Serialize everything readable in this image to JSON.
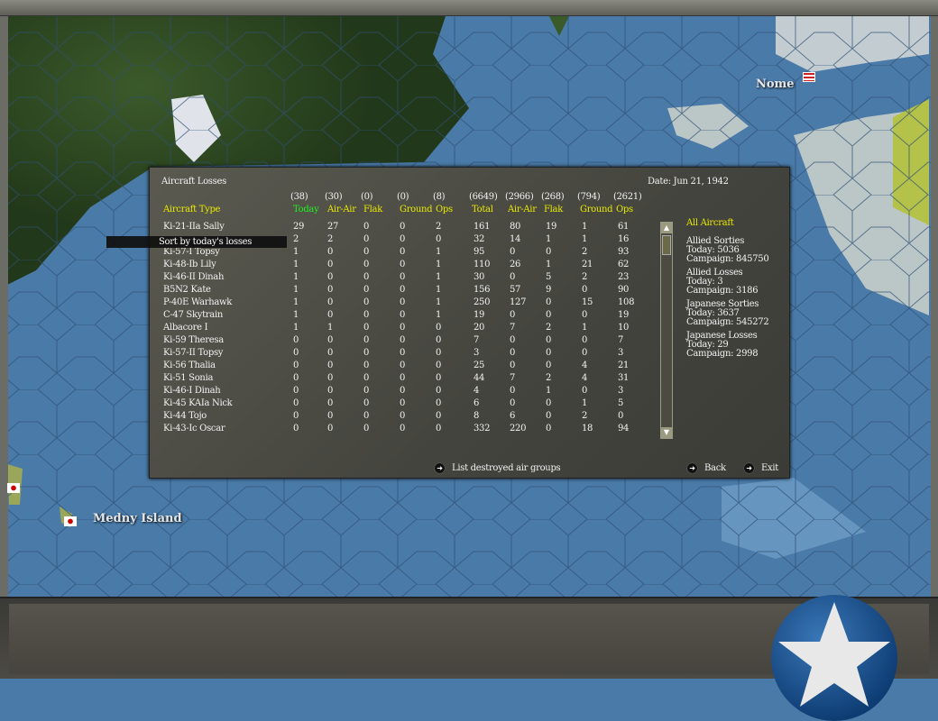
{
  "map": {
    "labels": [
      "Nome",
      "Medny Island"
    ],
    "colors": {
      "sea": "#4a7aa8",
      "land": "#2f4a22"
    }
  },
  "dialog": {
    "title": "Aircraft Losses",
    "date": "Date:  Jun 21, 1942",
    "tooltip": "Sort by today's losses",
    "header_name": "Aircraft Type",
    "columns": [
      {
        "total": "(38)",
        "label": "Today",
        "color": "green"
      },
      {
        "total": "(30)",
        "label": "Air-Air",
        "color": "yellow"
      },
      {
        "total": "(0)",
        "label": "Flak",
        "color": "yellow"
      },
      {
        "total": "(0)",
        "label": "Ground",
        "color": "yellow"
      },
      {
        "total": "(8)",
        "label": "Ops",
        "color": "yellow"
      },
      {
        "total": "(6649)",
        "label": "Total",
        "color": "yellow"
      },
      {
        "total": "(2966)",
        "label": "Air-Air",
        "color": "yellow"
      },
      {
        "total": "(268)",
        "label": "Flak",
        "color": "yellow"
      },
      {
        "total": "(794)",
        "label": "Ground",
        "color": "yellow"
      },
      {
        "total": "(2621)",
        "label": "Ops",
        "color": "yellow"
      }
    ],
    "rows": [
      {
        "name": "Ki-21-IIa Sally",
        "v": [
          "29",
          "27",
          "0",
          "0",
          "2",
          "161",
          "80",
          "19",
          "1",
          "61"
        ]
      },
      {
        "name": "",
        "v": [
          "2",
          "2",
          "0",
          "0",
          "0",
          "32",
          "14",
          "1",
          "1",
          "16"
        ]
      },
      {
        "name": "Ki-57-I Topsy",
        "v": [
          "1",
          "0",
          "0",
          "0",
          "1",
          "95",
          "0",
          "0",
          "2",
          "93"
        ]
      },
      {
        "name": "Ki-48-Ib Lily",
        "v": [
          "1",
          "0",
          "0",
          "0",
          "1",
          "110",
          "26",
          "1",
          "21",
          "62"
        ]
      },
      {
        "name": "Ki-46-II Dinah",
        "v": [
          "1",
          "0",
          "0",
          "0",
          "1",
          "30",
          "0",
          "5",
          "2",
          "23"
        ]
      },
      {
        "name": "B5N2 Kate",
        "v": [
          "1",
          "0",
          "0",
          "0",
          "1",
          "156",
          "57",
          "9",
          "0",
          "90"
        ]
      },
      {
        "name": "P-40E Warhawk",
        "v": [
          "1",
          "0",
          "0",
          "0",
          "1",
          "250",
          "127",
          "0",
          "15",
          "108"
        ]
      },
      {
        "name": "C-47 Skytrain",
        "v": [
          "1",
          "0",
          "0",
          "0",
          "1",
          "19",
          "0",
          "0",
          "0",
          "19"
        ]
      },
      {
        "name": "Albacore I",
        "v": [
          "1",
          "1",
          "0",
          "0",
          "0",
          "20",
          "7",
          "2",
          "1",
          "10"
        ]
      },
      {
        "name": "Ki-59 Theresa",
        "v": [
          "0",
          "0",
          "0",
          "0",
          "0",
          "7",
          "0",
          "0",
          "0",
          "7"
        ]
      },
      {
        "name": "Ki-57-II Topsy",
        "v": [
          "0",
          "0",
          "0",
          "0",
          "0",
          "3",
          "0",
          "0",
          "0",
          "3"
        ]
      },
      {
        "name": "Ki-56 Thalia",
        "v": [
          "0",
          "0",
          "0",
          "0",
          "0",
          "25",
          "0",
          "0",
          "4",
          "21"
        ]
      },
      {
        "name": "Ki-51 Sonia",
        "v": [
          "0",
          "0",
          "0",
          "0",
          "0",
          "44",
          "7",
          "2",
          "4",
          "31"
        ]
      },
      {
        "name": "Ki-46-I Dinah",
        "v": [
          "0",
          "0",
          "0",
          "0",
          "0",
          "4",
          "0",
          "1",
          "0",
          "3"
        ]
      },
      {
        "name": "Ki-45 KAIa Nick",
        "v": [
          "0",
          "0",
          "0",
          "0",
          "0",
          "6",
          "0",
          "0",
          "1",
          "5"
        ]
      },
      {
        "name": "Ki-44 Tojo",
        "v": [
          "0",
          "0",
          "0",
          "0",
          "0",
          "8",
          "6",
          "0",
          "2",
          "0"
        ]
      },
      {
        "name": "Ki-43-Ic Oscar",
        "v": [
          "0",
          "0",
          "0",
          "0",
          "0",
          "332",
          "220",
          "0",
          "18",
          "94"
        ]
      }
    ],
    "summary": {
      "filter": "All Aircraft",
      "blocks": [
        {
          "title": "Allied Sorties",
          "today": "Today:   5036",
          "campaign": "Campaign: 845750"
        },
        {
          "title": "Allied Losses",
          "today": "Today:   3",
          "campaign": "Campaign: 3186"
        },
        {
          "title": "Japanese Sorties",
          "today": "Today:   3637",
          "campaign": "Campaign: 545272"
        },
        {
          "title": "Japanese Losses",
          "today": "Today:   29",
          "campaign": "Campaign: 2998"
        }
      ]
    },
    "buttons": {
      "list": "List destroyed air groups",
      "back": "Back",
      "exit": "Exit"
    }
  }
}
